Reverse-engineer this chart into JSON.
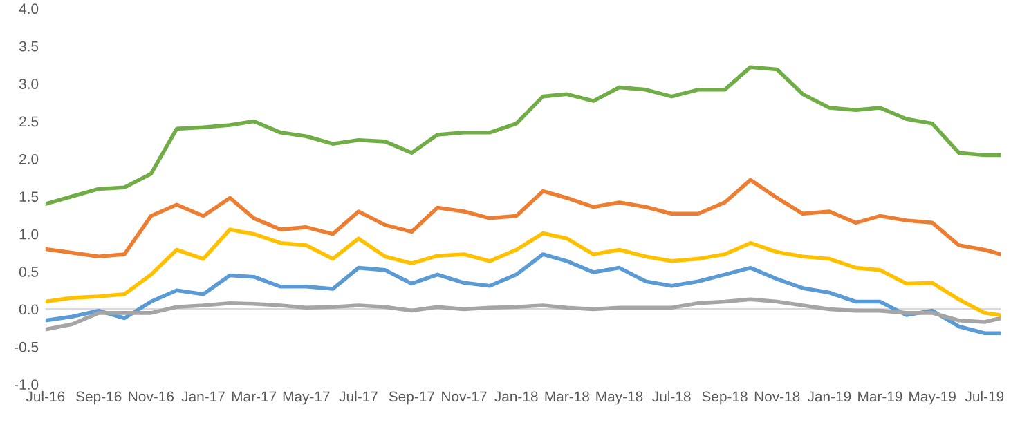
{
  "chart_data": {
    "type": "line",
    "x": [
      "2016-07-01",
      "2016-08-01",
      "2016-09-01",
      "2016-10-01",
      "2016-11-01",
      "2016-12-01",
      "2017-01-01",
      "2017-02-01",
      "2017-03-01",
      "2017-04-01",
      "2017-05-01",
      "2017-06-01",
      "2017-07-01",
      "2017-08-01",
      "2017-09-01",
      "2017-10-01",
      "2017-11-01",
      "2017-12-01",
      "2018-01-01",
      "2018-02-01",
      "2018-03-01",
      "2018-04-01",
      "2018-05-01",
      "2018-06-01",
      "2018-07-01",
      "2018-08-01",
      "2018-09-01",
      "2018-10-01",
      "2018-11-01",
      "2018-12-01",
      "2019-01-01",
      "2019-02-01",
      "2019-03-01",
      "2019-04-01",
      "2019-05-01",
      "2019-06-01",
      "2019-07-01",
      "2019-07-20"
    ],
    "series": [
      {
        "color": "#5b9bd5",
        "values": [
          -0.15,
          -0.1,
          -0.02,
          -0.12,
          0.1,
          0.25,
          0.2,
          0.45,
          0.43,
          0.3,
          0.3,
          0.27,
          0.55,
          0.52,
          0.34,
          0.46,
          0.35,
          0.31,
          0.46,
          0.73,
          0.64,
          0.49,
          0.55,
          0.37,
          0.31,
          0.37,
          0.46,
          0.55,
          0.4,
          0.28,
          0.22,
          0.1,
          0.1,
          -0.08,
          -0.02,
          -0.23,
          -0.32,
          -0.32
        ]
      },
      {
        "color": "#ed7d31",
        "values": [
          0.8,
          0.75,
          0.7,
          0.73,
          1.24,
          1.39,
          1.24,
          1.48,
          1.21,
          1.06,
          1.09,
          1.0,
          1.3,
          1.12,
          1.03,
          1.35,
          1.3,
          1.21,
          1.24,
          1.57,
          1.48,
          1.36,
          1.42,
          1.36,
          1.27,
          1.27,
          1.42,
          1.72,
          1.48,
          1.27,
          1.3,
          1.15,
          1.24,
          1.18,
          1.15,
          0.85,
          0.79,
          0.73
        ]
      },
      {
        "color": "#a5a5a5",
        "values": [
          -0.27,
          -0.2,
          -0.05,
          -0.05,
          -0.05,
          0.03,
          0.05,
          0.08,
          0.07,
          0.05,
          0.02,
          0.03,
          0.05,
          0.03,
          -0.02,
          0.03,
          0.0,
          0.02,
          0.03,
          0.05,
          0.02,
          0.0,
          0.02,
          0.02,
          0.02,
          0.08,
          0.1,
          0.13,
          0.1,
          0.05,
          0.0,
          -0.02,
          -0.02,
          -0.05,
          -0.05,
          -0.15,
          -0.17,
          -0.12
        ]
      },
      {
        "color": "#ffc000",
        "values": [
          0.1,
          0.15,
          0.17,
          0.2,
          0.46,
          0.79,
          0.67,
          1.06,
          1.0,
          0.88,
          0.85,
          0.67,
          0.94,
          0.7,
          0.61,
          0.71,
          0.73,
          0.64,
          0.79,
          1.01,
          0.94,
          0.73,
          0.79,
          0.7,
          0.64,
          0.67,
          0.73,
          0.88,
          0.76,
          0.7,
          0.67,
          0.55,
          0.52,
          0.34,
          0.35,
          0.13,
          -0.05,
          -0.08
        ]
      },
      {
        "color": "#70ad47",
        "values": [
          1.4,
          1.5,
          1.6,
          1.62,
          1.8,
          2.4,
          2.42,
          2.45,
          2.5,
          2.35,
          2.3,
          2.2,
          2.25,
          2.23,
          2.08,
          2.32,
          2.35,
          2.35,
          2.47,
          2.83,
          2.86,
          2.77,
          2.95,
          2.92,
          2.83,
          2.92,
          2.92,
          3.22,
          3.19,
          2.86,
          2.68,
          2.65,
          2.68,
          2.53,
          2.47,
          2.08,
          2.05,
          2.05
        ]
      }
    ],
    "xlim": [
      "2016-07-01",
      "2019-07-20"
    ],
    "xticks": [
      {
        "value": "2016-07-01",
        "label": "Jul-16"
      },
      {
        "value": "2016-09-01",
        "label": "Sep-16"
      },
      {
        "value": "2016-11-01",
        "label": "Nov-16"
      },
      {
        "value": "2017-01-01",
        "label": "Jan-17"
      },
      {
        "value": "2017-03-01",
        "label": "Mar-17"
      },
      {
        "value": "2017-05-01",
        "label": "May-17"
      },
      {
        "value": "2017-07-01",
        "label": "Jul-17"
      },
      {
        "value": "2017-09-01",
        "label": "Sep-17"
      },
      {
        "value": "2017-11-01",
        "label": "Nov-17"
      },
      {
        "value": "2018-01-01",
        "label": "Jan-18"
      },
      {
        "value": "2018-03-01",
        "label": "Mar-18"
      },
      {
        "value": "2018-05-01",
        "label": "May-18"
      },
      {
        "value": "2018-07-01",
        "label": "Jul-18"
      },
      {
        "value": "2018-09-01",
        "label": "Sep-18"
      },
      {
        "value": "2018-11-01",
        "label": "Nov-18"
      },
      {
        "value": "2019-01-01",
        "label": "Jan-19"
      },
      {
        "value": "2019-03-01",
        "label": "Mar-19"
      },
      {
        "value": "2019-05-01",
        "label": "May-19"
      },
      {
        "value": "2019-07-01",
        "label": "Jul-19"
      }
    ],
    "ylim": [
      -1.0,
      4.0
    ],
    "yticks": [
      {
        "value": -1.0,
        "label": "-1.0"
      },
      {
        "value": -0.5,
        "label": "-0.5"
      },
      {
        "value": 0.0,
        "label": "0.0"
      },
      {
        "value": 0.5,
        "label": "0.5"
      },
      {
        "value": 1.0,
        "label": "1.0"
      },
      {
        "value": 1.5,
        "label": "1.5"
      },
      {
        "value": 2.0,
        "label": "2.0"
      },
      {
        "value": 2.5,
        "label": "2.5"
      },
      {
        "value": 3.0,
        "label": "3.0"
      },
      {
        "value": 3.5,
        "label": "3.5"
      },
      {
        "value": 4.0,
        "label": "4.0"
      }
    ],
    "ref_lines": [
      {
        "axis": "y",
        "value": 0.0,
        "color": "#d9d9d9"
      }
    ],
    "grid": false,
    "legend": false
  }
}
